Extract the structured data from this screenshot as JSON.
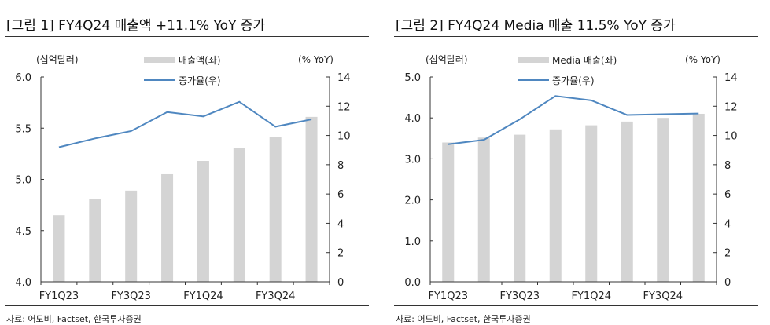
{
  "colors": {
    "bar": "#d4d4d4",
    "line": "#4f87c0",
    "axis": "#333333"
  },
  "chart_data": [
    {
      "type": "bar+line",
      "title": "[그림 1] FY4Q24 매출액 +11.1% YoY 증가",
      "categories": [
        "FY1Q23",
        "FY2Q23",
        "FY3Q23",
        "FY4Q23",
        "FY1Q24",
        "FY2Q24",
        "FY3Q24",
        "FY4Q24"
      ],
      "tick_labels": [
        "FY1Q23",
        "",
        "FY3Q23",
        "",
        "FY1Q24",
        "",
        "FY3Q24",
        ""
      ],
      "left_unit": "(십억달러)",
      "right_unit": "(% YoY)",
      "ylim": [
        4.0,
        6.0
      ],
      "yticks": [
        "4.0",
        "4.5",
        "5.0",
        "5.5",
        "6.0"
      ],
      "y2lim": [
        0,
        14
      ],
      "y2ticks": [
        "0",
        "2",
        "4",
        "6",
        "8",
        "10",
        "12",
        "14"
      ],
      "series": [
        {
          "name": "매출액(좌)",
          "type": "bar",
          "axis": "left",
          "values": [
            4.65,
            4.81,
            4.89,
            5.05,
            5.18,
            5.31,
            5.41,
            5.61
          ]
        },
        {
          "name": "증가율(우)",
          "type": "line",
          "axis": "right",
          "values": [
            9.2,
            9.8,
            10.3,
            11.6,
            11.3,
            12.3,
            10.6,
            11.1
          ]
        }
      ],
      "legend": "top-center",
      "source": "자료: 어도비, Factset, 한국투자증권"
    },
    {
      "type": "bar+line",
      "title": "[그림 2] FY4Q24 Media 매출 11.5% YoY 증가",
      "categories": [
        "FY1Q23",
        "FY2Q23",
        "FY3Q23",
        "FY4Q23",
        "FY1Q24",
        "FY2Q24",
        "FY3Q24",
        "FY4Q24"
      ],
      "tick_labels": [
        "FY1Q23",
        "",
        "FY3Q23",
        "",
        "FY1Q24",
        "",
        "FY3Q24",
        ""
      ],
      "left_unit": "(십억달러)",
      "right_unit": "(% YoY)",
      "ylim": [
        0,
        5.0
      ],
      "yticks": [
        "0.0",
        "1.0",
        "2.0",
        "3.0",
        "4.0",
        "5.0"
      ],
      "y2lim": [
        0,
        14
      ],
      "y2ticks": [
        "0",
        "2",
        "4",
        "6",
        "8",
        "10",
        "12",
        "14"
      ],
      "series": [
        {
          "name": "Media 매출(좌)",
          "type": "bar",
          "axis": "left",
          "values": [
            3.4,
            3.52,
            3.59,
            3.72,
            3.82,
            3.91,
            4.0,
            4.1
          ]
        },
        {
          "name": "증가율(우)",
          "type": "line",
          "axis": "right",
          "values": [
            9.4,
            9.7,
            11.1,
            12.7,
            12.4,
            11.4,
            11.45,
            11.5
          ]
        }
      ],
      "legend": "top-center",
      "source": "자료: 어도비, Factset, 한국투자증권"
    }
  ]
}
